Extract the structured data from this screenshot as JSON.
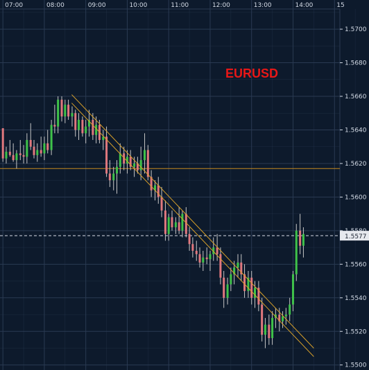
{
  "chart_data": {
    "type": "candlestick",
    "title": "EURUSD",
    "current_price_label": "1.5577",
    "x_tick_labels": [
      "07:00",
      "08:00",
      "09:00",
      "10:00",
      "11:00",
      "12:00",
      "13:00",
      "14:00",
      "15"
    ],
    "x_ticks_hours": [
      7,
      8,
      9,
      10,
      11,
      12,
      13,
      14,
      15
    ],
    "x_range_hours": [
      6.93,
      15.13
    ],
    "y_tick_labels": [
      "1.5700",
      "1.5680",
      "1.5660",
      "1.5640",
      "1.5620",
      "1.5600",
      "1.5580",
      "1.5560",
      "1.5540",
      "1.5520",
      "1.5500"
    ],
    "y_range": [
      1.5497,
      1.5712
    ],
    "grid": true,
    "colors": {
      "background": "#0d1a2c",
      "grid": "#2a3a52",
      "bull": "#3fc24a",
      "bear": "#e0787e",
      "wick": "#c7c7c7",
      "trendline": "#d8a02a",
      "horizontal_line": "#c78a1e",
      "price_line": "#d8dde6",
      "title": "#e81717",
      "axis_text": "#d4dbe6"
    },
    "horizontal_level": 1.5617,
    "current_price": 1.5577,
    "trendlines": [
      {
        "from": [
          8.66,
          1.5661
        ],
        "to": [
          14.5,
          1.551
        ]
      },
      {
        "from": [
          8.66,
          1.5656
        ],
        "to": [
          14.5,
          1.5505
        ]
      }
    ],
    "candles": [
      [
        7.0,
        1.5641,
        1.5641,
        1.5621,
        1.5623
      ],
      [
        7.08,
        1.5623,
        1.563,
        1.562,
        1.5627
      ],
      [
        7.17,
        1.5627,
        1.5634,
        1.5624,
        1.5625
      ],
      [
        7.25,
        1.5625,
        1.5632,
        1.5621,
        1.5622
      ],
      [
        7.33,
        1.5622,
        1.5628,
        1.5617,
        1.5626
      ],
      [
        7.42,
        1.5626,
        1.5634,
        1.5622,
        1.5625
      ],
      [
        7.5,
        1.5625,
        1.5631,
        1.562,
        1.5624
      ],
      [
        7.58,
        1.5624,
        1.5638,
        1.562,
        1.5634
      ],
      [
        7.67,
        1.5634,
        1.5644,
        1.5628,
        1.563
      ],
      [
        7.75,
        1.563,
        1.5634,
        1.5623,
        1.5625
      ],
      [
        7.83,
        1.5625,
        1.5632,
        1.5621,
        1.5628
      ],
      [
        7.92,
        1.5628,
        1.5636,
        1.5624,
        1.5626
      ],
      [
        8.0,
        1.5626,
        1.5636,
        1.5622,
        1.5632
      ],
      [
        8.08,
        1.5632,
        1.564,
        1.5626,
        1.5628
      ],
      [
        8.17,
        1.5628,
        1.5646,
        1.5625,
        1.5643
      ],
      [
        8.25,
        1.5643,
        1.5655,
        1.5638,
        1.5642
      ],
      [
        8.33,
        1.5642,
        1.566,
        1.5638,
        1.5658
      ],
      [
        8.42,
        1.5658,
        1.566,
        1.5645,
        1.5648
      ],
      [
        8.5,
        1.5648,
        1.5658,
        1.5644,
        1.5655
      ],
      [
        8.58,
        1.5655,
        1.5658,
        1.5646,
        1.5648
      ],
      [
        8.67,
        1.5648,
        1.5654,
        1.5642,
        1.565
      ],
      [
        8.75,
        1.565,
        1.5652,
        1.5636,
        1.564
      ],
      [
        8.83,
        1.564,
        1.565,
        1.5634,
        1.5646
      ],
      [
        8.92,
        1.5646,
        1.5648,
        1.5636,
        1.5638
      ],
      [
        9.0,
        1.5638,
        1.5646,
        1.5632,
        1.5642
      ],
      [
        9.08,
        1.5642,
        1.5652,
        1.5636,
        1.5646
      ],
      [
        9.17,
        1.5646,
        1.565,
        1.5634,
        1.5637
      ],
      [
        9.25,
        1.5637,
        1.5648,
        1.5632,
        1.5643
      ],
      [
        9.33,
        1.5643,
        1.5646,
        1.5632,
        1.5634
      ],
      [
        9.42,
        1.5634,
        1.564,
        1.5628,
        1.5636
      ],
      [
        9.5,
        1.5636,
        1.5642,
        1.5612,
        1.5614
      ],
      [
        9.58,
        1.5614,
        1.5622,
        1.5606,
        1.561
      ],
      [
        9.67,
        1.561,
        1.5618,
        1.5604,
        1.5614
      ],
      [
        9.75,
        1.5614,
        1.5622,
        1.5602,
        1.5618
      ],
      [
        9.83,
        1.5618,
        1.5632,
        1.5614,
        1.5626
      ],
      [
        9.92,
        1.5626,
        1.563,
        1.5616,
        1.562
      ],
      [
        10.0,
        1.562,
        1.5628,
        1.5614,
        1.5624
      ],
      [
        10.08,
        1.5624,
        1.5628,
        1.5616,
        1.5618
      ],
      [
        10.17,
        1.5618,
        1.5624,
        1.5612,
        1.562
      ],
      [
        10.25,
        1.562,
        1.5624,
        1.5614,
        1.5616
      ],
      [
        10.33,
        1.5616,
        1.563,
        1.561,
        1.5622
      ],
      [
        10.42,
        1.5622,
        1.5638,
        1.5614,
        1.5628
      ],
      [
        10.5,
        1.5628,
        1.5631,
        1.561,
        1.5612
      ],
      [
        10.58,
        1.5612,
        1.5616,
        1.56,
        1.5604
      ],
      [
        10.67,
        1.5604,
        1.561,
        1.5598,
        1.5607
      ],
      [
        10.75,
        1.5607,
        1.5612,
        1.5596,
        1.56
      ],
      [
        10.83,
        1.56,
        1.5606,
        1.5588,
        1.5592
      ],
      [
        10.92,
        1.5592,
        1.5598,
        1.5574,
        1.5578
      ],
      [
        11.0,
        1.5578,
        1.559,
        1.5574,
        1.5588
      ],
      [
        11.08,
        1.5588,
        1.5592,
        1.558,
        1.5582
      ],
      [
        11.17,
        1.5582,
        1.5588,
        1.5578,
        1.5585
      ],
      [
        11.25,
        1.5585,
        1.5594,
        1.5578,
        1.558
      ],
      [
        11.33,
        1.558,
        1.5592,
        1.5576,
        1.559
      ],
      [
        11.42,
        1.559,
        1.5594,
        1.5576,
        1.5578
      ],
      [
        11.5,
        1.5578,
        1.5582,
        1.5568,
        1.5572
      ],
      [
        11.58,
        1.5572,
        1.5576,
        1.5564,
        1.5568
      ],
      [
        11.67,
        1.5568,
        1.5574,
        1.5562,
        1.5566
      ],
      [
        11.75,
        1.5566,
        1.557,
        1.5558,
        1.5561
      ],
      [
        11.83,
        1.5561,
        1.5568,
        1.5556,
        1.5564
      ],
      [
        11.92,
        1.5564,
        1.557,
        1.556,
        1.5563
      ],
      [
        12.0,
        1.5563,
        1.5568,
        1.5556,
        1.5566
      ],
      [
        12.08,
        1.5566,
        1.5576,
        1.5562,
        1.557
      ],
      [
        12.17,
        1.557,
        1.5578,
        1.5562,
        1.5566
      ],
      [
        12.25,
        1.5566,
        1.557,
        1.5548,
        1.5552
      ],
      [
        12.33,
        1.5552,
        1.5556,
        1.5534,
        1.554
      ],
      [
        12.42,
        1.554,
        1.5552,
        1.5536,
        1.5548
      ],
      [
        12.5,
        1.5548,
        1.5558,
        1.5544,
        1.5554
      ],
      [
        12.58,
        1.5554,
        1.5562,
        1.5548,
        1.5558
      ],
      [
        12.67,
        1.5558,
        1.5566,
        1.5552,
        1.5561
      ],
      [
        12.75,
        1.5561,
        1.5566,
        1.555,
        1.5554
      ],
      [
        12.83,
        1.5554,
        1.556,
        1.554,
        1.5544
      ],
      [
        12.92,
        1.5544,
        1.5556,
        1.554,
        1.5552
      ],
      [
        13.0,
        1.5552,
        1.5556,
        1.5536,
        1.554
      ],
      [
        13.08,
        1.554,
        1.555,
        1.5534,
        1.5546
      ],
      [
        13.17,
        1.5546,
        1.555,
        1.5532,
        1.5536
      ],
      [
        13.25,
        1.5536,
        1.554,
        1.5514,
        1.5518
      ],
      [
        13.33,
        1.5518,
        1.5528,
        1.551,
        1.5524
      ],
      [
        13.42,
        1.5524,
        1.553,
        1.5512,
        1.5516
      ],
      [
        13.5,
        1.5516,
        1.5532,
        1.5512,
        1.5528
      ],
      [
        13.58,
        1.5528,
        1.5534,
        1.5522,
        1.553
      ],
      [
        13.67,
        1.553,
        1.5534,
        1.552,
        1.5526
      ],
      [
        13.75,
        1.5526,
        1.5532,
        1.5522,
        1.5529
      ],
      [
        13.83,
        1.5529,
        1.5534,
        1.5524,
        1.553
      ],
      [
        13.92,
        1.553,
        1.554,
        1.5526,
        1.5536
      ],
      [
        14.0,
        1.5536,
        1.5556,
        1.5532,
        1.5554
      ],
      [
        14.08,
        1.5554,
        1.5584,
        1.555,
        1.558
      ],
      [
        14.17,
        1.558,
        1.559,
        1.5566,
        1.5571
      ],
      [
        14.25,
        1.5571,
        1.5582,
        1.5564,
        1.5578
      ]
    ]
  }
}
